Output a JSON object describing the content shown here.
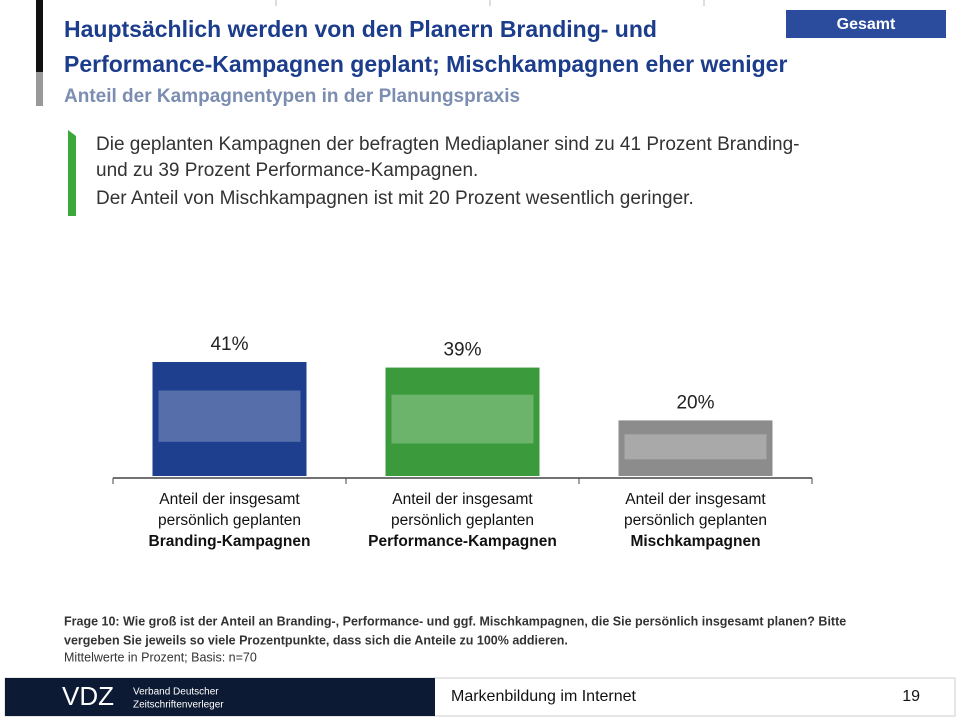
{
  "tag": "Gesamt",
  "title_lines": [
    "Hauptsächlich werden von den Planern Branding- und",
    "Performance-Kampagnen geplant; Mischkampagnen eher weniger"
  ],
  "subtitle": "Anteil der Kampagnentypen in der Planungspraxis",
  "bullet_lines": [
    "Die geplanten Kampagnen der befragten Mediaplaner sind zu 41 Prozent Branding-",
    "und zu 39 Prozent Performance-Kampagnen.",
    "Der Anteil von Mischkampagnen ist mit 20 Prozent wesentlich geringer."
  ],
  "chart_data": {
    "type": "bar",
    "category_prefix_lines": [
      "Anteil der insgesamt",
      "persönlich geplanten"
    ],
    "categories": [
      "Branding-Kampagnen",
      "Performance-Kampagnen",
      "Mischkampagnen"
    ],
    "values": [
      41,
      39,
      20
    ],
    "value_labels": [
      "41%",
      "39%",
      "20%"
    ],
    "colors": [
      "#1e3f8e",
      "#3b9a3b",
      "#8c8c8c"
    ]
  },
  "footnote_bold_lines": [
    "Frage 10: Wie groß ist der Anteil an Branding-, Performance- und ggf. Mischkampagnen, die Sie persönlich insgesamt planen? Bitte",
    "vergeben Sie jeweils so viele Prozentpunkte, dass sich die Anteile zu 100% addieren."
  ],
  "footnote": "Mittelwerte in Prozent; Basis: n=70",
  "footer": {
    "logo": "VDZ",
    "org_lines": [
      "Verband Deutscher",
      "Zeitschriftenverleger"
    ],
    "title": "Markenbildung im Internet",
    "page": "19"
  }
}
